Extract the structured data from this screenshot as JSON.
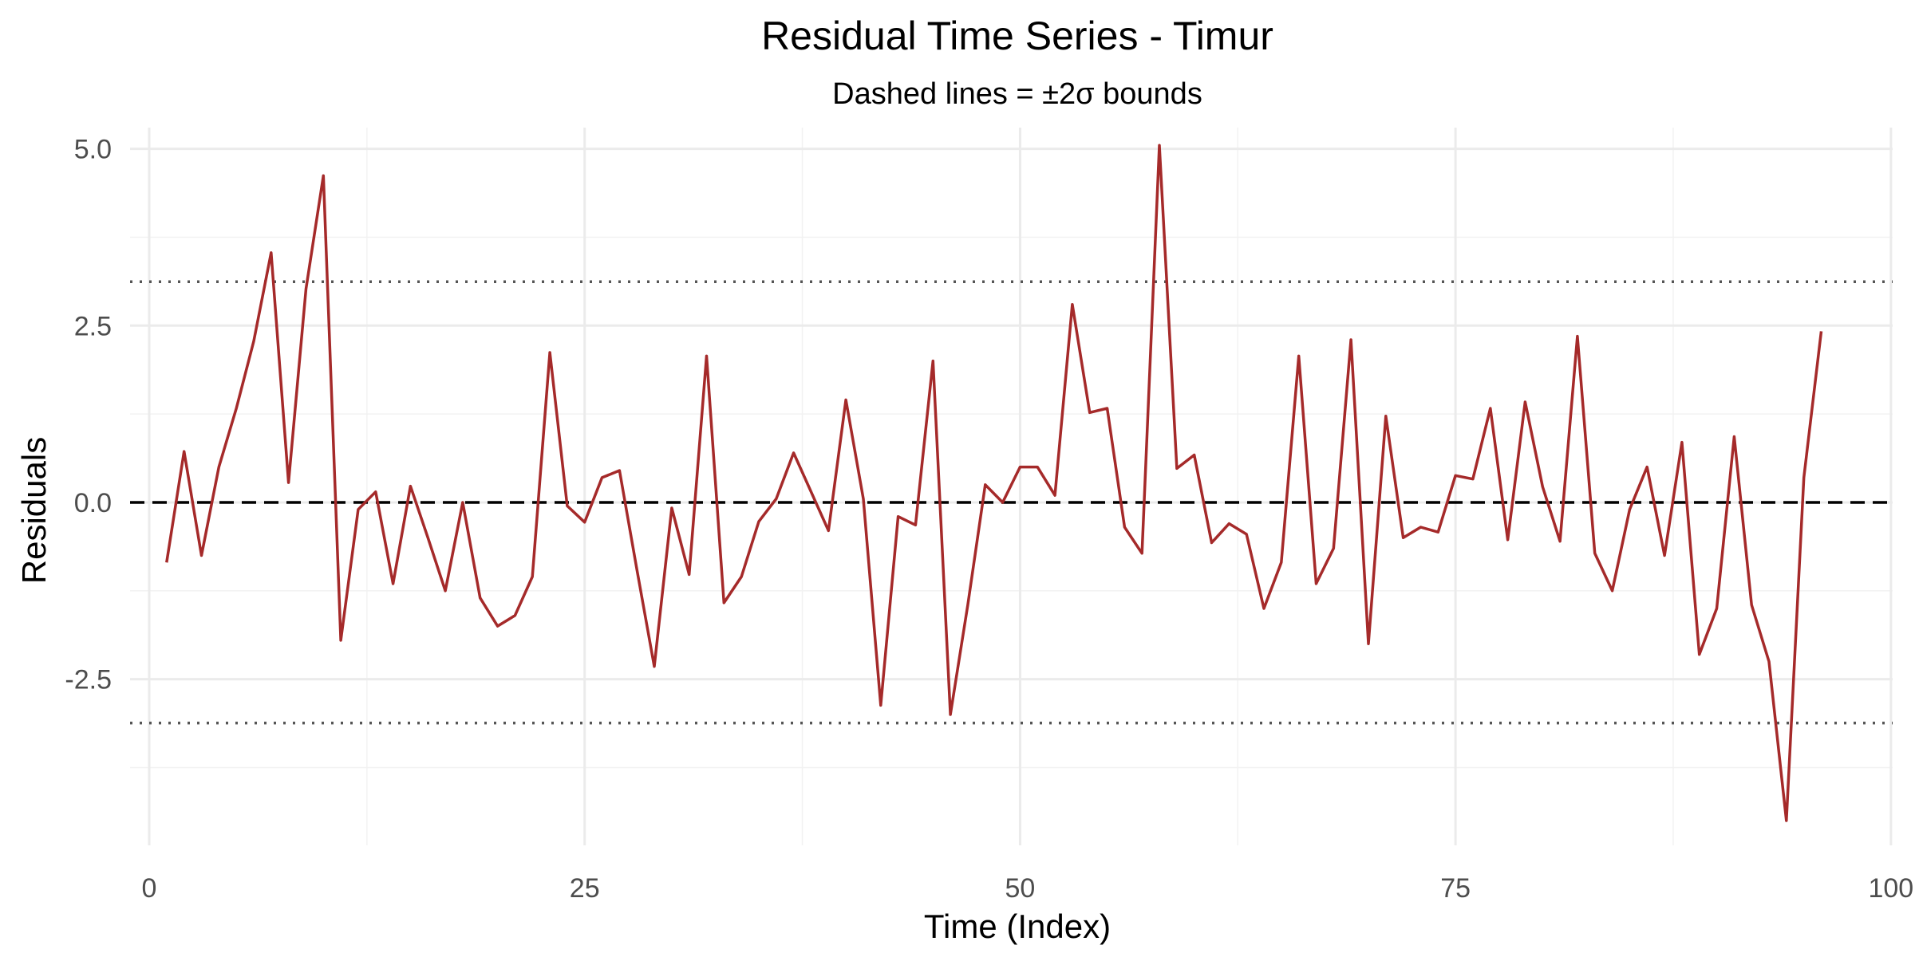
{
  "chart_data": {
    "type": "line",
    "title": "Residual Time Series - Timur",
    "subtitle": "Dashed lines = ±2σ bounds",
    "xlabel": "Time (Index)",
    "ylabel": "Residuals",
    "xlim": [
      -1.1,
      100.1
    ],
    "ylim": [
      -4.85,
      5.3
    ],
    "x_ticks": [
      0,
      25,
      50,
      75,
      100
    ],
    "x_tick_labels": [
      "0",
      "25",
      "50",
      "75",
      "100"
    ],
    "y_ticks": [
      -2.5,
      0.0,
      2.5,
      5.0
    ],
    "y_tick_labels": [
      "-2.5",
      "0.0",
      "2.5",
      "5.0"
    ],
    "grid": true,
    "reference_lines": {
      "zero": 0,
      "upper_bound": 3.12,
      "lower_bound": -3.12
    },
    "colors": {
      "series": "#a52a2a",
      "zero_line": "#000000",
      "bound_line": "#555555"
    },
    "series": [
      {
        "x": [
          1,
          2,
          3,
          4,
          5,
          6,
          7,
          8,
          9,
          10,
          11,
          12,
          13,
          14,
          15,
          16,
          17,
          18,
          19,
          20,
          21,
          22,
          23,
          24,
          25,
          26,
          27,
          28,
          29,
          30,
          31,
          32,
          33,
          34,
          35,
          36,
          37,
          38,
          39,
          40,
          41,
          42,
          43,
          44,
          45,
          46,
          47,
          48,
          49,
          50,
          51,
          52,
          53,
          54,
          55,
          56,
          57,
          58,
          59,
          60,
          61,
          62,
          63,
          64,
          65,
          66,
          67,
          68,
          69,
          70,
          71,
          72,
          73,
          74,
          75,
          76,
          77,
          78,
          79,
          80,
          81,
          82,
          83,
          84,
          85,
          86,
          87,
          88,
          89,
          90,
          91,
          92,
          93,
          94,
          95,
          96
        ],
        "values": [
          -0.85,
          0.72,
          -0.75,
          0.5,
          1.33,
          2.28,
          3.53,
          0.28,
          3.02,
          4.62,
          -1.95,
          -0.1,
          0.15,
          -1.15,
          0.23,
          -0.5,
          -1.25,
          0.0,
          -1.35,
          -1.75,
          -1.6,
          -1.05,
          2.12,
          -0.05,
          -0.28,
          0.35,
          0.45,
          -0.95,
          -2.32,
          -0.08,
          -1.02,
          2.07,
          -1.42,
          -1.05,
          -0.27,
          0.05,
          0.7,
          0.15,
          -0.4,
          1.45,
          0.05,
          -2.87,
          -0.2,
          -0.32,
          2.0,
          -3.0,
          -1.45,
          0.25,
          0.0,
          0.5,
          0.5,
          0.1,
          2.8,
          1.27,
          1.33,
          -0.35,
          -0.72,
          5.05,
          0.48,
          0.67,
          -0.57,
          -0.3,
          -0.45,
          -1.5,
          -0.85,
          2.07,
          -1.15,
          -0.65,
          2.3,
          -2.0,
          1.22,
          -0.5,
          -0.35,
          -0.42,
          0.38,
          0.33,
          1.33,
          -0.53,
          1.42,
          0.22,
          -0.55,
          2.35,
          -0.72,
          -1.25,
          -0.1,
          0.5,
          -0.75,
          0.85,
          -2.15,
          -1.5,
          0.93,
          -1.45,
          -2.25,
          -4.5,
          0.35,
          2.42
        ]
      }
    ]
  }
}
